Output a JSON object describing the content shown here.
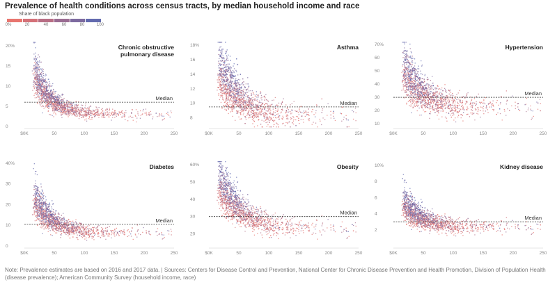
{
  "title": "Prevalence of health conditions across census tracts, by median household income and race",
  "legend": {
    "label": "Share of black population",
    "ticks": [
      "0%",
      "20",
      "40",
      "60",
      "80",
      "100"
    ],
    "colors": [
      "#e8756f",
      "#d47178",
      "#b86e85",
      "#9a6c92",
      "#7d6a9f",
      "#626aae"
    ]
  },
  "colors": {
    "low_black_share": "#e8756f",
    "high_black_share": "#5e6cb4",
    "median_line": "#333333",
    "axis": "#999999"
  },
  "chart_data": [
    {
      "type": "scatter",
      "title": "Chronic obstructive\npulmonary disease",
      "x_ticks": [
        "$0K",
        "50",
        "100",
        "150",
        "200",
        "250"
      ],
      "y_ticks": [
        "0",
        "5",
        "10",
        "15",
        "20%"
      ],
      "y_tick_values": [
        0,
        5,
        10,
        15,
        20
      ],
      "xlim": [
        0,
        250
      ],
      "ylim": [
        0,
        21
      ],
      "median": 6.0,
      "median_label": "Median",
      "curve": {
        "a": 3.1,
        "b": 14.5,
        "k": 28,
        "spread": 0.2
      }
    },
    {
      "type": "scatter",
      "title": "Asthma",
      "x_ticks": [
        "$0K",
        "50",
        "100",
        "150",
        "200",
        "250"
      ],
      "y_ticks": [
        "8",
        "10",
        "12",
        "14",
        "16",
        "18%"
      ],
      "y_tick_values": [
        8,
        10,
        12,
        14,
        16,
        18
      ],
      "xlim": [
        0,
        250
      ],
      "ylim": [
        6.8,
        18.5
      ],
      "median": 9.5,
      "median_label": "Median",
      "curve": {
        "a": 8.2,
        "b": 6.5,
        "k": 35,
        "spread": 0.1
      }
    },
    {
      "type": "scatter",
      "title": "Hypertension",
      "x_ticks": [
        "$0K",
        "50",
        "100",
        "150",
        "200",
        "250"
      ],
      "y_ticks": [
        "10",
        "20",
        "30",
        "40",
        "50",
        "60",
        "70%"
      ],
      "y_tick_values": [
        10,
        20,
        30,
        40,
        50,
        60,
        70
      ],
      "xlim": [
        0,
        250
      ],
      "ylim": [
        8,
        72
      ],
      "median": 30,
      "median_label": "Median",
      "curve": {
        "a": 23,
        "b": 35,
        "k": 30,
        "spread": 0.18
      }
    },
    {
      "type": "scatter",
      "title": "Diabetes",
      "x_ticks": [
        "$0K",
        "50",
        "100",
        "150",
        "200",
        "250"
      ],
      "y_ticks": [
        "0",
        "10",
        "20",
        "30",
        "40%"
      ],
      "y_tick_values": [
        0,
        10,
        20,
        30,
        40
      ],
      "xlim": [
        0,
        250
      ],
      "ylim": [
        0,
        41
      ],
      "median": 10.5,
      "median_label": "Median",
      "curve": {
        "a": 6.5,
        "b": 22,
        "k": 30,
        "spread": 0.2
      }
    },
    {
      "type": "scatter",
      "title": "Obesity",
      "x_ticks": [
        "$0K",
        "50",
        "100",
        "150",
        "200",
        "250"
      ],
      "y_ticks": [
        "20",
        "30",
        "40",
        "50",
        "60%"
      ],
      "y_tick_values": [
        20,
        30,
        40,
        50,
        60
      ],
      "xlim": [
        0,
        250
      ],
      "ylim": [
        13,
        62
      ],
      "median": 30,
      "median_label": "Median",
      "curve": {
        "a": 23,
        "b": 28,
        "k": 40,
        "spread": 0.11
      }
    },
    {
      "type": "scatter",
      "title": "Kidney disease",
      "x_ticks": [
        "$0K",
        "50",
        "100",
        "150",
        "200",
        "250"
      ],
      "y_ticks": [
        "2",
        "4",
        "6",
        "8",
        "10%"
      ],
      "y_tick_values": [
        2,
        4,
        6,
        8,
        10
      ],
      "xlim": [
        0,
        250
      ],
      "ylim": [
        0,
        10.5
      ],
      "median": 3.0,
      "median_label": "Median",
      "curve": {
        "a": 2.4,
        "b": 3.8,
        "k": 28,
        "spread": 0.17
      }
    }
  ],
  "note": "Note: Prevalence estimates are based on 2016 and 2017 data. | Sources: Centers for Disease Control and Prevention, National Center for Chronic Disease Prevention and Health Promotion, Division of Population Health (disease prevalence); American Community Survey (household income, race)"
}
